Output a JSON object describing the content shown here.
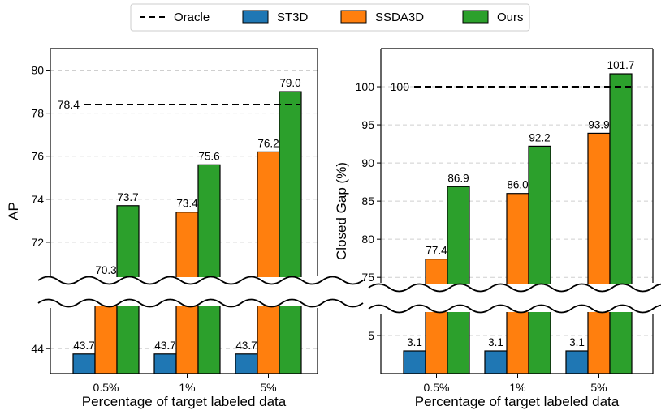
{
  "legend": {
    "position": "top-center",
    "entries": [
      {
        "key": "oracle",
        "label": "Oracle",
        "style": "dashed-line",
        "color": "#000000"
      },
      {
        "key": "st3d",
        "label": "ST3D",
        "color": "#1f77b4"
      },
      {
        "key": "ssda3d",
        "label": "SSDA3D",
        "color": "#ff7f0e"
      },
      {
        "key": "ours",
        "label": "Ours",
        "color": "#2ca02c"
      }
    ]
  },
  "chart_data": [
    {
      "type": "bar",
      "id": "ap",
      "title": "",
      "xlabel": "Percentage of target labeled data",
      "ylabel": "AP",
      "categories": [
        "0.5%",
        "1%",
        "5%"
      ],
      "broken_axis": true,
      "upper_ylim": [
        70.0,
        81.0
      ],
      "upper_yticks": [
        "72",
        "74",
        "76",
        "78",
        "80"
      ],
      "lower_ylim": [
        42.6,
        46.6
      ],
      "lower_yticks": [
        "44"
      ],
      "grid": true,
      "oracle": {
        "value": 78.4,
        "label": "78.4"
      },
      "series": [
        {
          "name": "ST3D",
          "values": [
            43.7,
            43.7,
            43.7
          ],
          "labels": [
            "43.7",
            "43.7",
            "43.7"
          ]
        },
        {
          "name": "SSDA3D",
          "values": [
            70.3,
            73.4,
            76.2
          ],
          "labels": [
            "70.3",
            "73.4",
            "76.2"
          ]
        },
        {
          "name": "Ours",
          "values": [
            73.7,
            75.6,
            79.0
          ],
          "labels": [
            "73.7",
            "75.6",
            "79.0"
          ]
        }
      ]
    },
    {
      "type": "bar",
      "id": "closed_gap",
      "title": "",
      "xlabel": "Percentage of target labeled data",
      "ylabel": "Closed Gap (%)",
      "categories": [
        "0.5%",
        "1%",
        "5%"
      ],
      "broken_axis": true,
      "upper_ylim": [
        73.0,
        105.0
      ],
      "upper_yticks": [
        "75",
        "80",
        "85",
        "90",
        "95",
        "100"
      ],
      "lower_ylim": [
        0.3,
        8.4
      ],
      "lower_yticks": [
        "5"
      ],
      "grid": true,
      "oracle": {
        "value": 100,
        "label": "100"
      },
      "series": [
        {
          "name": "ST3D",
          "values": [
            3.1,
            3.1,
            3.1
          ],
          "labels": [
            "3.1",
            "3.1",
            "3.1"
          ]
        },
        {
          "name": "SSDA3D",
          "values": [
            77.4,
            86.0,
            93.9
          ],
          "labels": [
            "77.4",
            "86.0",
            "93.9"
          ]
        },
        {
          "name": "Ours",
          "values": [
            86.9,
            92.2,
            101.7
          ],
          "labels": [
            "86.9",
            "92.2",
            "101.7"
          ]
        }
      ]
    }
  ]
}
